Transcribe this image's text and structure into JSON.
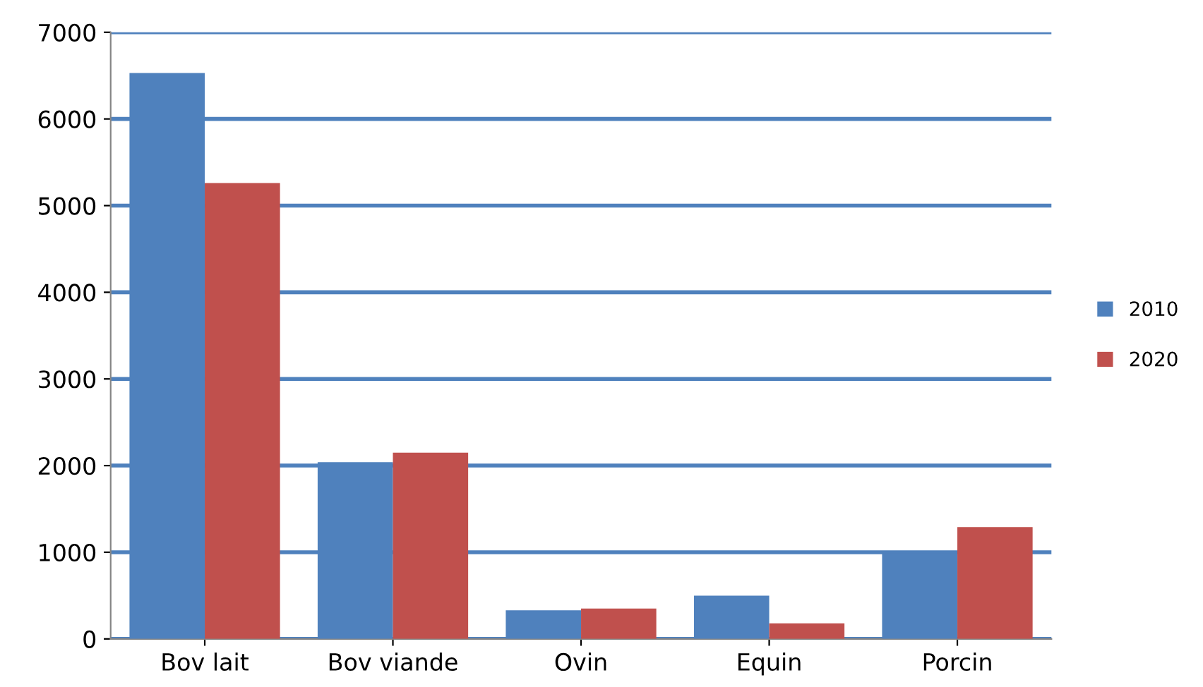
{
  "chart_data": {
    "type": "bar",
    "categories": [
      "Bov lait",
      "Bov viande",
      "Ovin",
      "Equin",
      "Porcin"
    ],
    "series": [
      {
        "name": "2010",
        "color": "#4f81bd",
        "values": [
          6530,
          2040,
          330,
          500,
          990
        ]
      },
      {
        "name": "2020",
        "color": "#c0504d",
        "values": [
          5260,
          2150,
          350,
          180,
          1290
        ]
      }
    ],
    "ylim": [
      0,
      7000
    ],
    "yticks": [
      0,
      1000,
      2000,
      3000,
      4000,
      5000,
      6000,
      7000
    ],
    "grid": "y",
    "legend": "right"
  }
}
